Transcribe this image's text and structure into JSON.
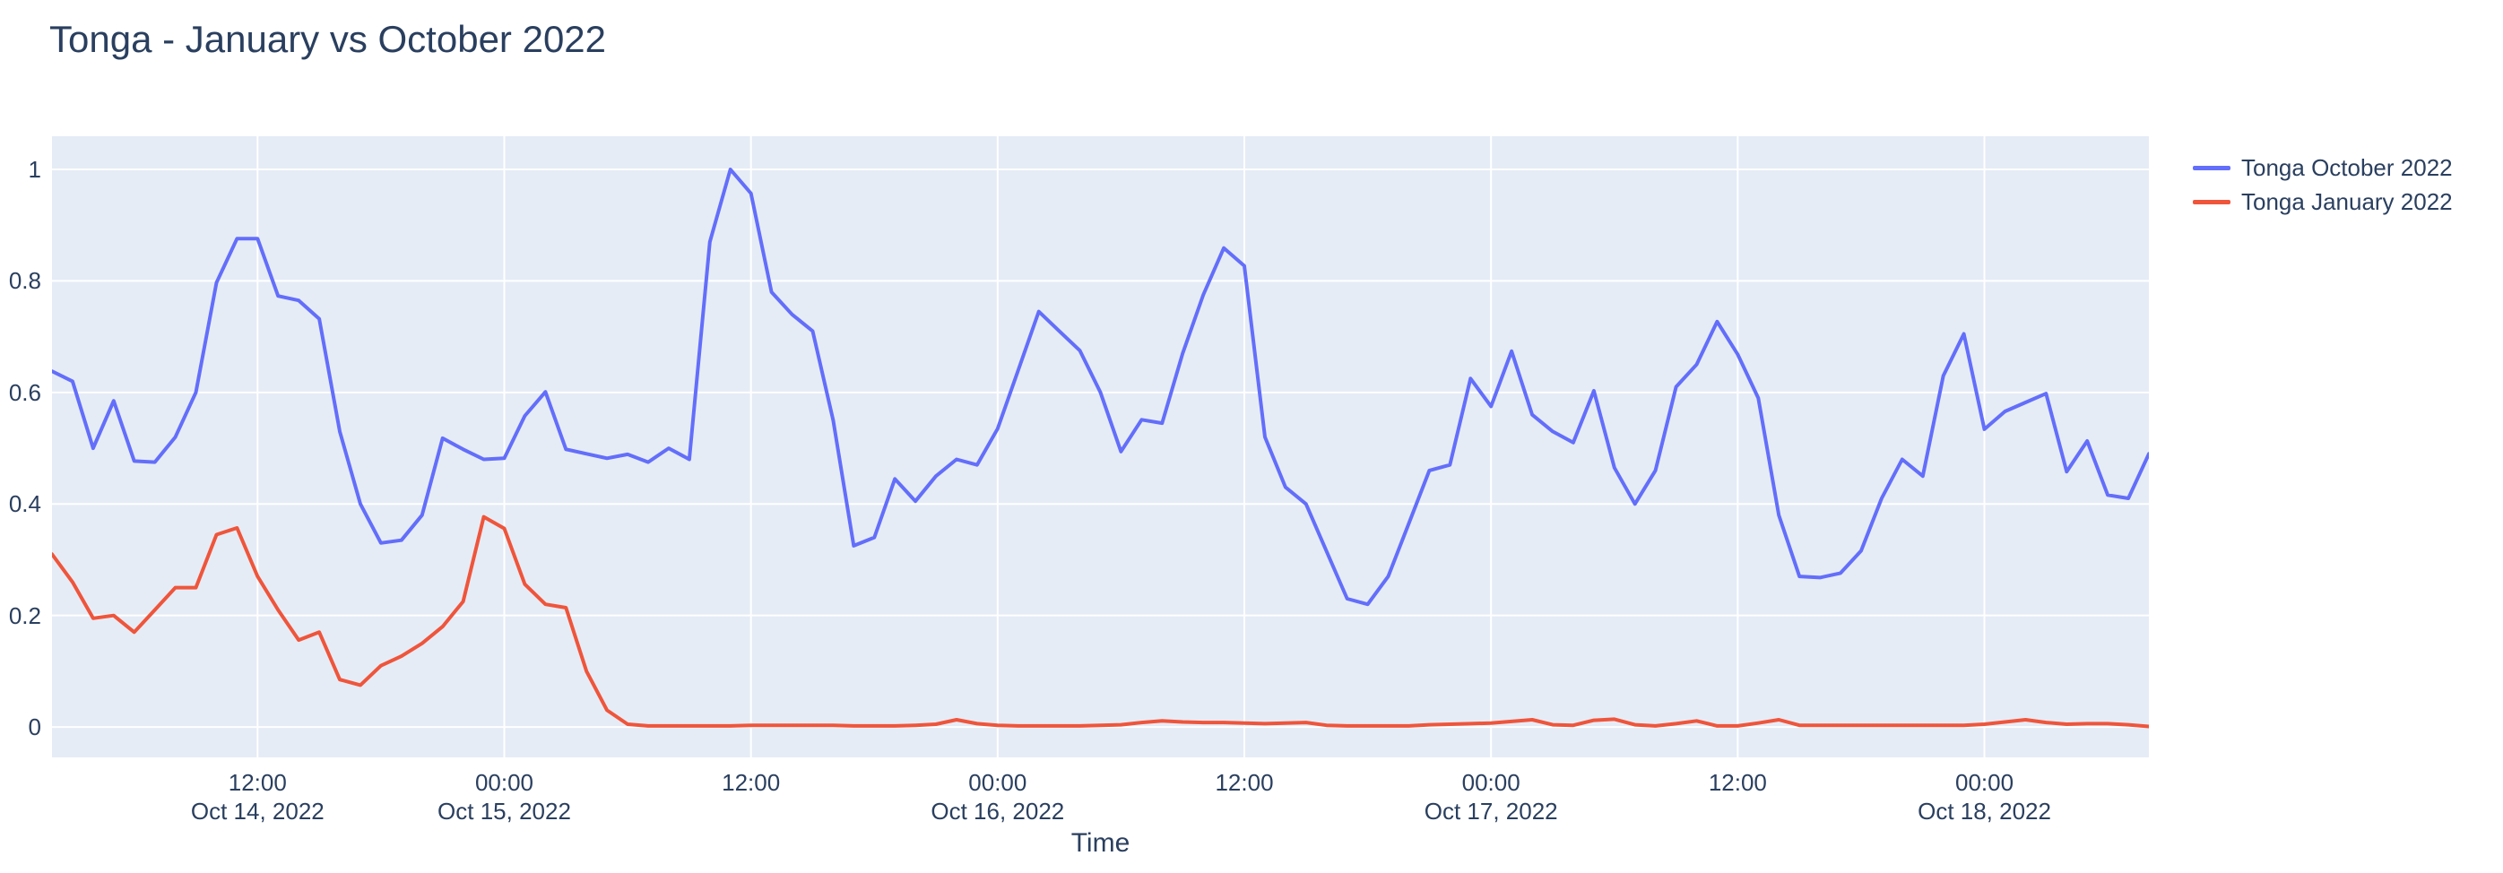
{
  "title": "Tonga - January vs October 2022",
  "colors": {
    "plot_background": "#e5ecf6",
    "grid": "#ffffff",
    "text": "#2a3f5f",
    "series_october": "#636efa",
    "series_january": "#ef553b"
  },
  "axes": {
    "x_title": "Time",
    "y_ticks": [
      {
        "label": "0",
        "value": 0
      },
      {
        "label": "0.2",
        "value": 0.2
      },
      {
        "label": "0.4",
        "value": 0.4
      },
      {
        "label": "0.6",
        "value": 0.6
      },
      {
        "label": "0.8",
        "value": 0.8
      },
      {
        "label": "1",
        "value": 1
      }
    ],
    "x_ticks": [
      {
        "time": "12:00",
        "date": "Oct 14, 2022",
        "hour_offset": 10
      },
      {
        "time": "00:00",
        "date": "Oct 15, 2022",
        "hour_offset": 22
      },
      {
        "time": "12:00",
        "date": "",
        "hour_offset": 34
      },
      {
        "time": "00:00",
        "date": "Oct 16, 2022",
        "hour_offset": 46
      },
      {
        "time": "12:00",
        "date": "",
        "hour_offset": 58
      },
      {
        "time": "00:00",
        "date": "Oct 17, 2022",
        "hour_offset": 70
      },
      {
        "time": "12:00",
        "date": "",
        "hour_offset": 82
      },
      {
        "time": "00:00",
        "date": "Oct 18, 2022",
        "hour_offset": 94
      }
    ]
  },
  "legend": [
    {
      "label": "Tonga October 2022",
      "color": "#636efa"
    },
    {
      "label": "Tonga January 2022",
      "color": "#ef553b"
    }
  ],
  "chart_data": {
    "type": "line",
    "title": "Tonga - January vs October 2022",
    "xlabel": "Time",
    "ylabel": "",
    "x_start": "Oct 14, 2022 02:00",
    "x_end": "Oct 18, 2022 08:00",
    "x_interval_hours": 1,
    "ylim": [
      -0.0545,
      1.0595
    ],
    "grid": true,
    "legend_position": "top-right-outside",
    "series": [
      {
        "name": "Tonga October 2022",
        "color": "#636efa",
        "values": [
          0.638,
          0.62,
          0.5,
          0.585,
          0.477,
          0.475,
          0.52,
          0.6,
          0.797,
          0.876,
          0.876,
          0.773,
          0.765,
          0.732,
          0.53,
          0.4,
          0.33,
          0.335,
          0.38,
          0.518,
          0.498,
          0.48,
          0.482,
          0.558,
          0.601,
          0.498,
          0.49,
          0.482,
          0.489,
          0.475,
          0.5,
          0.48,
          0.87,
          1.0,
          0.957,
          0.78,
          0.74,
          0.71,
          0.55,
          0.325,
          0.34,
          0.445,
          0.405,
          0.45,
          0.48,
          0.47,
          0.535,
          0.64,
          0.745,
          0.71,
          0.675,
          0.6,
          0.494,
          0.551,
          0.545,
          0.67,
          0.775,
          0.859,
          0.827,
          0.52,
          0.43,
          0.4,
          0.315,
          0.23,
          0.22,
          0.27,
          0.365,
          0.46,
          0.47,
          0.625,
          0.575,
          0.674,
          0.56,
          0.53,
          0.51,
          0.603,
          0.465,
          0.4,
          0.46,
          0.61,
          0.65,
          0.727,
          0.668,
          0.59,
          0.38,
          0.27,
          0.268,
          0.276,
          0.316,
          0.41,
          0.48,
          0.45,
          0.63,
          0.705,
          0.534,
          0.566,
          0.582,
          0.598,
          0.458,
          0.513,
          0.416,
          0.41,
          0.49
        ]
      },
      {
        "name": "Tonga January 2022",
        "color": "#ef553b",
        "values": [
          0.31,
          0.26,
          0.195,
          0.2,
          0.17,
          0.21,
          0.25,
          0.25,
          0.345,
          0.357,
          0.27,
          0.21,
          0.156,
          0.17,
          0.085,
          0.075,
          0.11,
          0.127,
          0.15,
          0.18,
          0.225,
          0.377,
          0.356,
          0.256,
          0.22,
          0.214,
          0.1,
          0.03,
          0.005,
          0.002,
          0.002,
          0.002,
          0.002,
          0.002,
          0.003,
          0.003,
          0.003,
          0.003,
          0.003,
          0.002,
          0.002,
          0.002,
          0.003,
          0.005,
          0.013,
          0.006,
          0.003,
          0.002,
          0.002,
          0.002,
          0.002,
          0.003,
          0.004,
          0.008,
          0.011,
          0.009,
          0.008,
          0.008,
          0.007,
          0.006,
          0.007,
          0.008,
          0.003,
          0.002,
          0.002,
          0.002,
          0.002,
          0.004,
          0.005,
          0.006,
          0.007,
          0.01,
          0.013,
          0.004,
          0.003,
          0.012,
          0.014,
          0.004,
          0.002,
          0.006,
          0.011,
          0.002,
          0.002,
          0.007,
          0.013,
          0.003,
          0.003,
          0.003,
          0.003,
          0.003,
          0.003,
          0.003,
          0.003,
          0.003,
          0.005,
          0.009,
          0.013,
          0.008,
          0.005,
          0.006,
          0.006,
          0.004,
          0.001
        ]
      }
    ]
  }
}
